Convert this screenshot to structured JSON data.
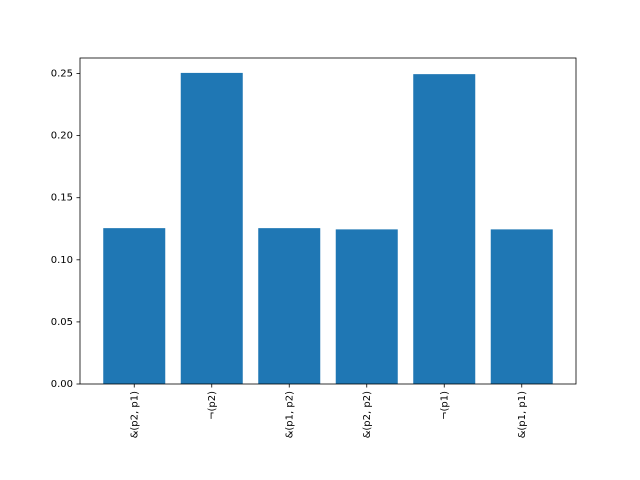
{
  "chart_data": {
    "type": "bar",
    "categories": [
      "&(p2, p1)",
      "¬(p2)",
      "&(p1, p2)",
      "&(p2, p2)",
      "¬(p1)",
      "&(p1, p1)"
    ],
    "values": [
      0.1255,
      0.2505,
      0.1255,
      0.1245,
      0.2495,
      0.1245
    ],
    "color": "#1f77b4",
    "ylim": [
      0,
      0.2625
    ],
    "yticks": [
      {
        "value": 0,
        "label": "0.00"
      },
      {
        "value": 0.05,
        "label": "0.05"
      },
      {
        "value": 0.1,
        "label": "0.10"
      },
      {
        "value": 0.15,
        "label": "0.15"
      },
      {
        "value": 0.2,
        "label": "0.20"
      },
      {
        "value": 0.25,
        "label": "0.25"
      }
    ]
  }
}
